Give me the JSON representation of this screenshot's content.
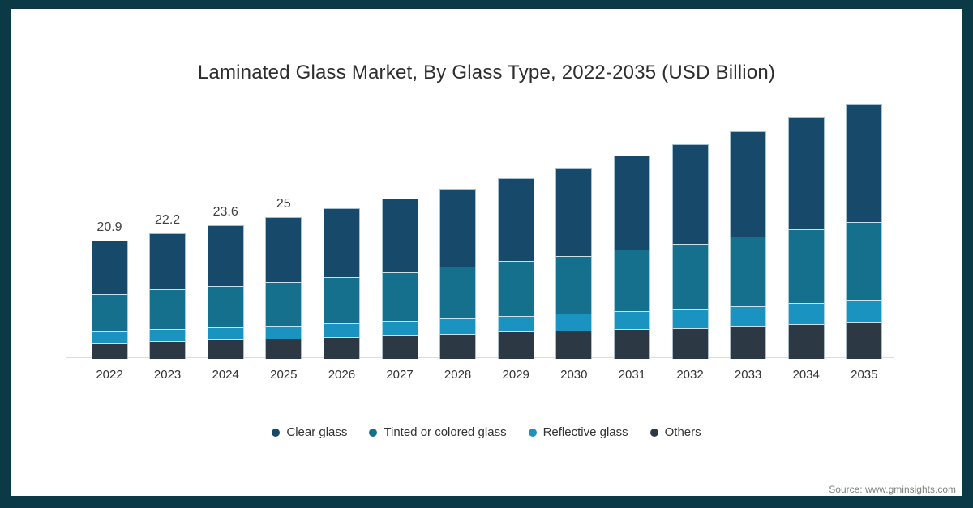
{
  "chart": {
    "title": "Laminated Glass Market, By Glass Type, 2022-2035 (USD Billion)"
  },
  "footer": {
    "source": "Source: www.gminsights.com"
  },
  "colors": {
    "frame_border": "#0b3a46",
    "clear_glass": "#17496b",
    "tinted_glass": "#15708e",
    "reflective_glass": "#1b93c0",
    "others": "#2c3945",
    "axis_line": "#d8dce3",
    "title_text": "#2d2d2d",
    "label_text": "#404040",
    "source_text": "#808080",
    "background": "#ffffff"
  },
  "chart_data": {
    "type": "bar",
    "stacked": true,
    "title": "Laminated Glass Market, By Glass Type, 2022-2035 (USD Billion)",
    "xlabel": "",
    "ylabel": "USD Billion",
    "grid": false,
    "y_axis_visible": false,
    "legend_position": "bottom",
    "categories": [
      "2022",
      "2023",
      "2024",
      "2025",
      "2026",
      "2027",
      "2028",
      "2029",
      "2030",
      "2031",
      "2032",
      "2033",
      "2034",
      "2035"
    ],
    "stack_order_bottom_to_top": [
      "Others",
      "Reflective glass",
      "Tinted or colored glass",
      "Clear glass"
    ],
    "series": [
      {
        "name": "Clear glass",
        "color": "#17496b",
        "values": [
          9.4,
          9.9,
          10.7,
          11.4,
          12.2,
          13.0,
          13.7,
          14.5,
          15.5,
          16.6,
          17.6,
          18.6,
          19.8,
          20.8
        ]
      },
      {
        "name": "Tinted or colored glass",
        "color": "#15708e",
        "values": [
          6.6,
          7.0,
          7.3,
          7.7,
          8.1,
          8.6,
          9.1,
          9.7,
          10.2,
          10.9,
          11.6,
          12.3,
          13.0,
          13.8
        ]
      },
      {
        "name": "Reflective glass",
        "color": "#1b93c0",
        "values": [
          2.0,
          2.1,
          2.2,
          2.3,
          2.4,
          2.5,
          2.7,
          2.8,
          3.0,
          3.1,
          3.2,
          3.4,
          3.6,
          3.9
        ]
      },
      {
        "name": "Others",
        "color": "#2c3945",
        "values": [
          2.9,
          3.2,
          3.4,
          3.6,
          3.9,
          4.2,
          4.5,
          4.8,
          5.0,
          5.3,
          5.5,
          5.9,
          6.2,
          6.5
        ]
      }
    ],
    "totals": [
      20.9,
      22.2,
      23.6,
      25.0,
      26.6,
      28.3,
      30.0,
      31.8,
      33.7,
      35.9,
      37.9,
      40.2,
      42.6,
      45.0
    ],
    "visible_total_labels": [
      "20.9",
      "22.2",
      "23.6",
      "25"
    ]
  }
}
